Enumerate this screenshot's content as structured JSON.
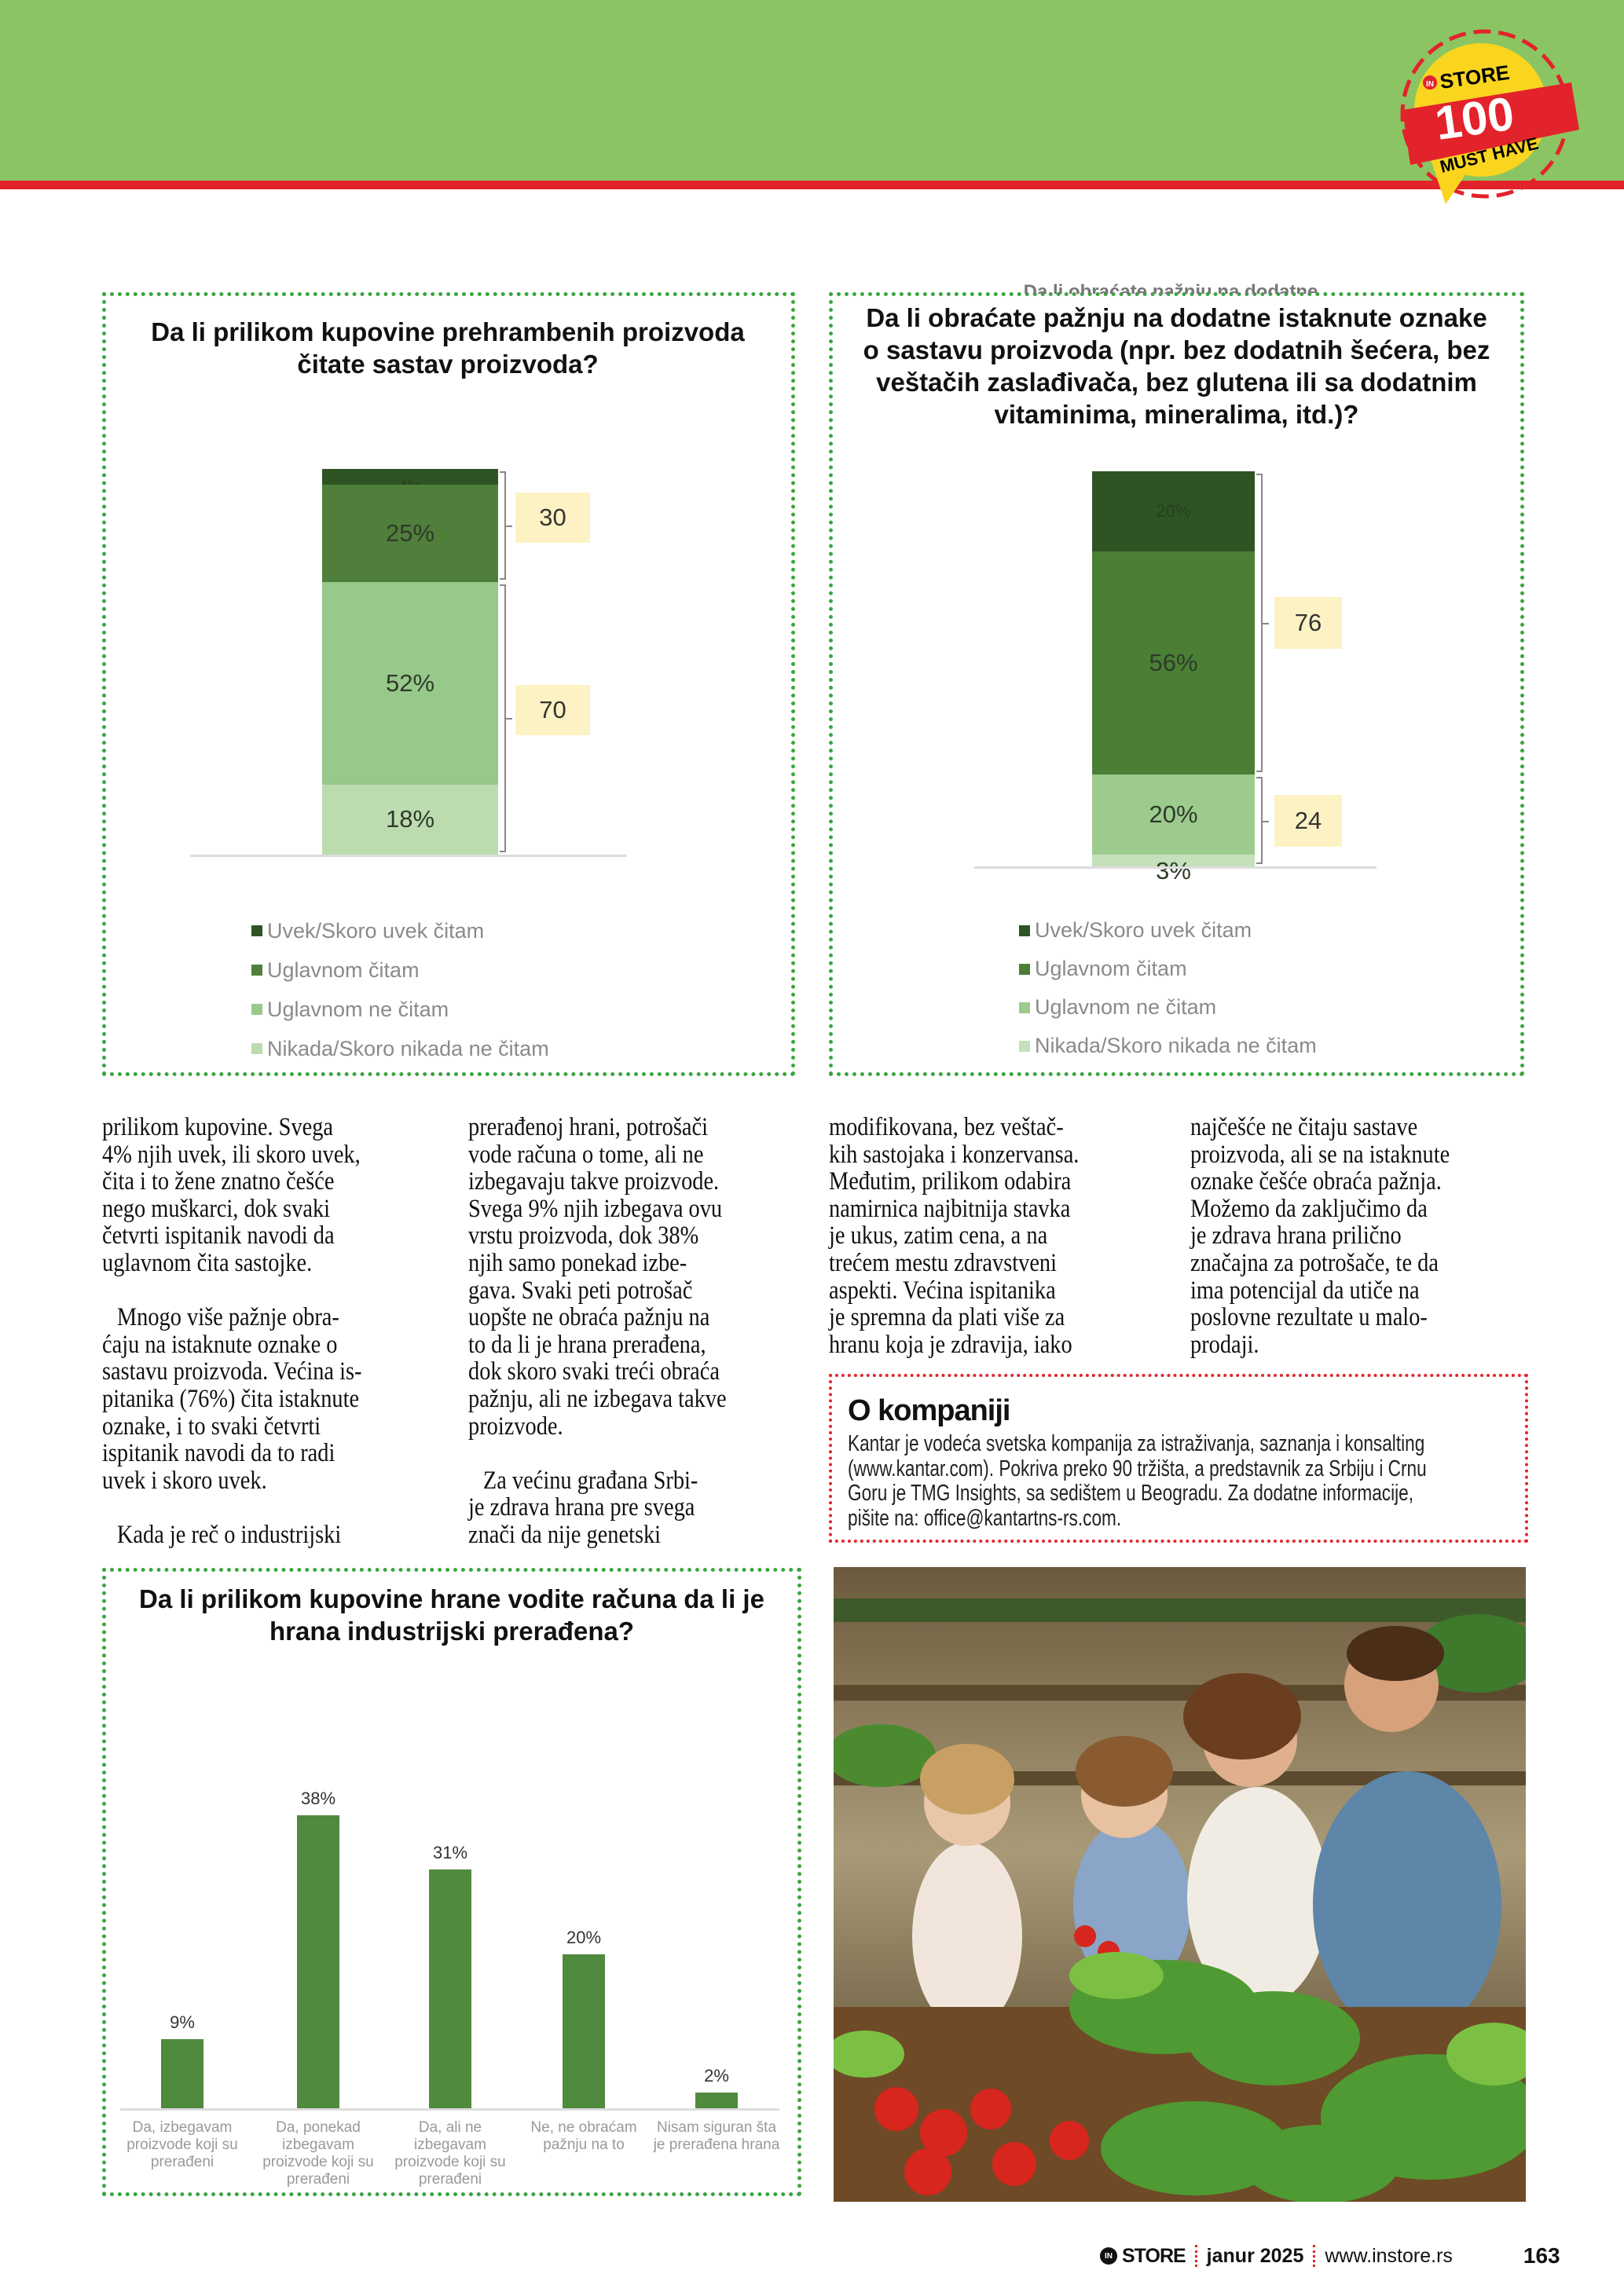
{
  "badge": {
    "brand": "STORE",
    "brand_prefix": "IN",
    "number": "100",
    "subtitle": "MUST HAVE"
  },
  "colors": {
    "header_green": "#8bc563",
    "accent_red": "#e3232b",
    "box_green": "#3aa640"
  },
  "chart_data": [
    {
      "type": "bar",
      "stacked": true,
      "title": "Da li prilikom kupovine prehrambenih proizvoda čitate sastav proizvoda?",
      "series": [
        {
          "name": "Uvek/Skoro uvek čitam",
          "value": 4,
          "label": "4%",
          "color": "#2f5424"
        },
        {
          "name": "Uglavnom čitam",
          "value": 25,
          "label": "25%",
          "color": "#4f7f3a"
        },
        {
          "name": "Uglavnom ne čitam",
          "value": 52,
          "label": "52%",
          "color": "#97c98a"
        },
        {
          "name": "Nikada/Skoro nikada ne čitam",
          "value": 18,
          "label": "18%",
          "color": "#bcdcb0"
        }
      ],
      "groups": [
        {
          "label": "30",
          "series": [
            0,
            1
          ]
        },
        {
          "label": "70",
          "series": [
            2,
            3
          ]
        }
      ],
      "legend": "bottom"
    },
    {
      "type": "bar",
      "stacked": true,
      "title": "Da li obraćate pažnju na dodatne istaknute oznake o sastavu proizvoda (npr. bez dodatnih šećera, bez veštačih zaslađivača, bez glutena ili sa dodatnim vitaminima, mineralima, itd.)?",
      "cut_title": "Da li obraćate pažnju na dodatne",
      "series": [
        {
          "name": "Uvek/Skoro uvek čitam",
          "value": 20,
          "label": "20%",
          "color": "#2f5424"
        },
        {
          "name": "Uglavnom čitam",
          "value": 56,
          "label": "56%",
          "color": "#4a7f35"
        },
        {
          "name": "Uglavnom ne čitam",
          "value": 20,
          "label": "20%",
          "color": "#9ccb8d"
        },
        {
          "name": "Nikada/Skoro nikada ne čitam",
          "value": 3,
          "label": "3%",
          "color": "#c5e0bb"
        }
      ],
      "groups": [
        {
          "label": "76",
          "series": [
            0,
            1
          ]
        },
        {
          "label": "24",
          "series": [
            2,
            3
          ]
        }
      ],
      "legend": "bottom"
    },
    {
      "type": "bar",
      "title": "Da li prilikom kupovine hrane vodite računa da li je hrana industrijski prerađena?",
      "categories": [
        "Da, izbegavam proizvode koji su prerađeni",
        "Da, ponekad izbegavam proizvode koji su prerađeni",
        "Da, ali ne izbegavam proizvode koji su prerađeni",
        "Ne, ne obraćam pažnju na to",
        "Nisam siguran šta je prerađena hrana"
      ],
      "values": [
        9,
        38,
        31,
        20,
        2
      ],
      "value_labels": [
        "9%",
        "38%",
        "31%",
        "20%",
        "2%"
      ],
      "color": "#4f8a3e",
      "ylim": [
        0,
        40
      ]
    }
  ],
  "chart1_title_lines": [
    "Da li prilikom kupovine prehrambenih proizvoda",
    "čitate sastav proizvoda?"
  ],
  "chart2_title_lines": [
    "Da li obraćate pažnju na dodatne istaknute oznake",
    "o sastavu proizvoda (npr. bez dodatnih šećera, bez",
    "veštačih zaslađivača, bez glutena ili sa dodatnim",
    "vitaminima, mineralima, itd.)?"
  ],
  "chart3_title_lines": [
    "Da li prilikom kupovine hrane vodite računa da li je",
    "hrana industrijski prerađena?"
  ],
  "chart3_cat_lines": [
    [
      "Da, izbegavam",
      "proizvode koji su",
      "prerađeni"
    ],
    [
      "Da, ponekad",
      "izbegavam",
      "proizvode koji su",
      "prerađeni"
    ],
    [
      "Da, ali ne",
      "izbegavam",
      "proizvode koji su",
      "prerađeni"
    ],
    [
      "Ne, ne obraćam",
      "pažnju na to"
    ],
    [
      "Nisam siguran šta",
      "je prerađena hrana"
    ]
  ],
  "article": {
    "col1": [
      "prilikom kupovine. Svega",
      "4% njih uvek, ili skoro uvek,",
      "čita i to žene znatno češće",
      "nego muškarci, dok svaki",
      "četvrti ispitanik navodi da",
      "uglavnom čita sastojke.",
      "",
      "Mnogo više pažnje obra-",
      "ćaju na istaknute oznake o",
      "sastavu proizvoda. Većina is-",
      "pitanika (76%) čita istaknute",
      "oznake, i to svaki četvrti",
      "ispitanik navodi da to radi",
      "uvek i skoro uvek.",
      "",
      "Kada je reč o industrijski"
    ],
    "col2": [
      "prerađenoj hrani, potrošači",
      "vode računa o tome, ali ne",
      "izbegavaju takve proizvode.",
      "Svega 9% njih izbegava ovu",
      "vrstu proizvoda, dok 38%",
      "njih samo ponekad izbe-",
      "gava. Svaki peti potrošač",
      "uopšte ne obraća pažnju na",
      "to da li je hrana prerađena,",
      "dok skoro svaki treći obraća",
      "pažnju, ali ne izbegava takve",
      "proizvode.",
      "",
      "Za većinu građana Srbi-",
      "je zdrava hrana pre svega",
      "znači da nije genetski"
    ],
    "col3": [
      "modifikovana, bez veštač-",
      "kih sastojaka i konzervansa.",
      "Međutim, prilikom odabira",
      "namirnica najbitnija stavka",
      "je ukus, zatim cena, a na",
      "trećem mestu zdravstveni",
      "aspekti. Većina ispitanika",
      "je spremna da plati više za",
      "hranu koja je zdravija, iako"
    ],
    "col4": [
      "najčešće ne čitaju sastave",
      "proizvoda, ali se na istaknute",
      "oznake češće obraća pažnja.",
      "Možemo da zaključimo da",
      "je zdrava hrana prilično",
      "značajna za potrošače, te da",
      "ima potencijal da utiče na",
      "poslovne rezultate u malo-",
      "prodaji."
    ]
  },
  "about": {
    "title": "O kompaniji",
    "lines": [
      "Kantar je vodeća svetska kompanija za istraživanja, saznanja i konsalting",
      "(www.kantar.com). Pokriva preko 90 tržišta, a predstavnik za Srbiju i Crnu",
      "Goru je TMG Insights, sa sedištem u Beogradu. Za dodatne informacije,",
      "pišite na: office@kantartns-rs.com."
    ]
  },
  "footer": {
    "brand_prefix": "IN",
    "brand": "STORE",
    "issue": "janur 2025",
    "website": "www.instore.rs",
    "page": "163"
  }
}
